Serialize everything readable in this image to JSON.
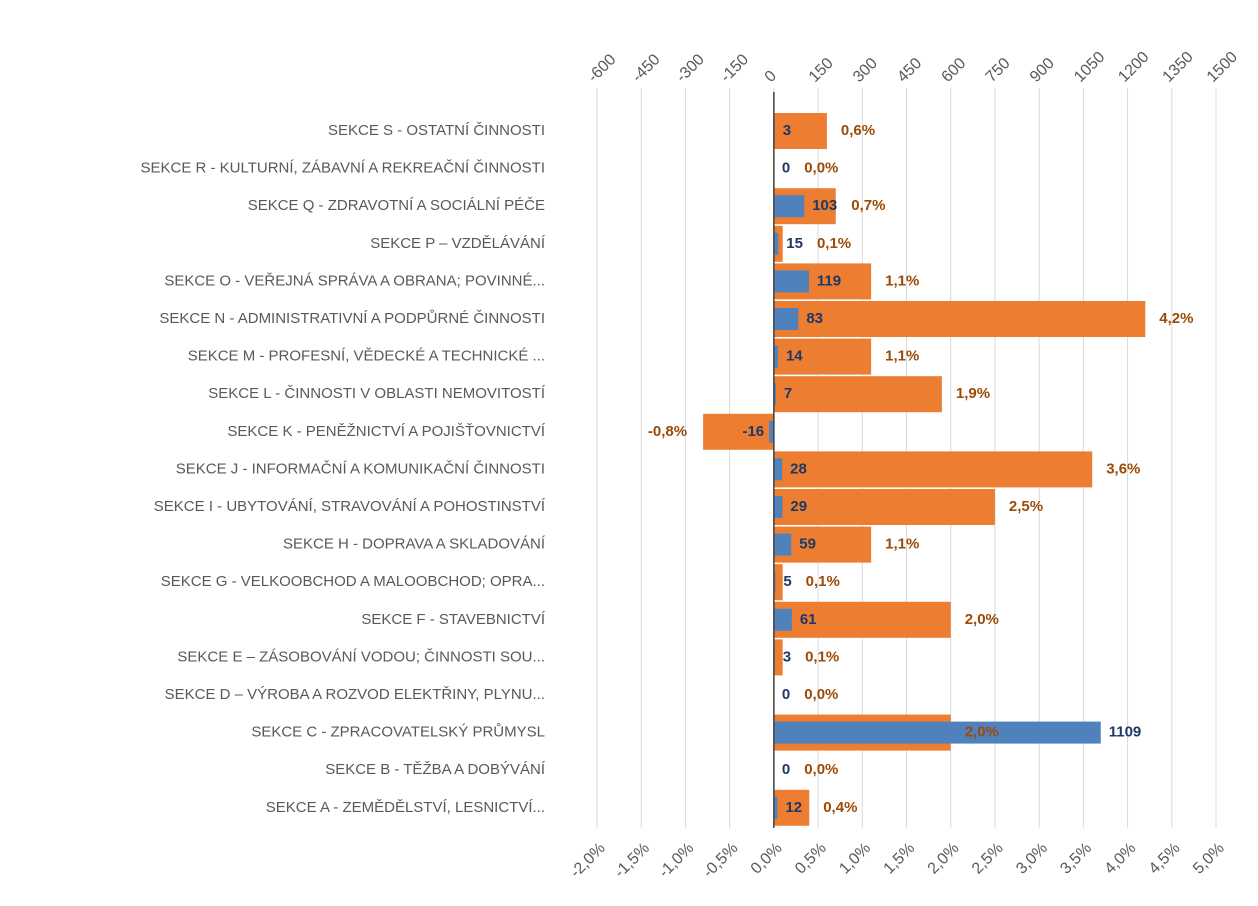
{
  "chart_data": {
    "type": "hbar",
    "categories": [
      "SEKCE S - OSTATNÍ ČINNOSTI",
      "SEKCE R - KULTURNÍ, ZÁBAVNÍ A REKREAČNÍ ČINNOSTI",
      "SEKCE Q - ZDRAVOTNÍ A SOCIÁLNÍ PÉČE",
      "SEKCE P – VZDĚLÁVÁNÍ",
      "SEKCE O - VEŘEJNÁ SPRÁVA A OBRANA; POVINNÉ...",
      "SEKCE N - ADMINISTRATIVNÍ A PODPŮRNÉ ČINNOSTI",
      "SEKCE M - PROFESNÍ, VĚDECKÉ A TECHNICKÉ ...",
      "SEKCE L - ČINNOSTI V OBLASTI NEMOVITOSTÍ",
      "SEKCE K - PENĚŽNICTVÍ A POJIŠŤOVNICTVÍ",
      "SEKCE J - INFORMAČNÍ A KOMUNIKAČNÍ ČINNOSTI",
      "SEKCE I - UBYTOVÁNÍ, STRAVOVÁNÍ A POHOSTINSTVÍ",
      "SEKCE H - DOPRAVA A SKLADOVÁNÍ",
      "SEKCE G - VELKOOBCHOD A MALOOBCHOD; OPRA...",
      "SEKCE F - STAVEBNICTVÍ",
      "SEKCE E – ZÁSOBOVÁNÍ VODOU; ČINNOSTI SOU...",
      "SEKCE D – VÝROBA A ROZVOD ELEKTŘINY, PLYNU...",
      "SEKCE C - ZPRACOVATELSKÝ PRŮMYSL",
      "SEKCE B - TĚŽBA A DOBÝVÁNÍ",
      "SEKCE A - ZEMĚDĚLSTVÍ, LESNICTVÍ..."
    ],
    "series": [
      {
        "color": "#ed7d31",
        "axis": "x",
        "values": [
          0.6,
          0.0,
          0.7,
          0.1,
          1.1,
          4.2,
          1.1,
          1.9,
          -0.8,
          3.6,
          2.5,
          1.1,
          0.1,
          2.0,
          0.1,
          0.0,
          2.0,
          0.0,
          0.4
        ],
        "value_labels": [
          "0,6%",
          "0,0%",
          "0,7%",
          "0,1%",
          "1,1%",
          "4,2%",
          "1,1%",
          "1,9%",
          "-0,8%",
          "3,6%",
          "2,5%",
          "1,1%",
          "0,1%",
          "2,0%",
          "0,1%",
          "0,0%",
          "2,0%",
          "0,0%",
          "0,4%"
        ]
      },
      {
        "color": "#4f81bd",
        "axis": "x2",
        "values": [
          3,
          0,
          103,
          15,
          119,
          83,
          14,
          7,
          -16,
          28,
          29,
          59,
          5,
          61,
          3,
          0,
          1109,
          0,
          12
        ]
      }
    ],
    "xlim": [
      -2,
      5
    ],
    "xticks": [
      {
        "value": -2,
        "label": "-2,0%"
      },
      {
        "value": -1.5,
        "label": "-1,5%"
      },
      {
        "value": -1,
        "label": "-1,0%"
      },
      {
        "value": -0.5,
        "label": "-0,5%"
      },
      {
        "value": 0,
        "label": "0,0%"
      },
      {
        "value": 0.5,
        "label": "0,5%"
      },
      {
        "value": 1,
        "label": "1,0%"
      },
      {
        "value": 1.5,
        "label": "1,5%"
      },
      {
        "value": 2,
        "label": "2,0%"
      },
      {
        "value": 2.5,
        "label": "2,5%"
      },
      {
        "value": 3,
        "label": "3,0%"
      },
      {
        "value": 3.5,
        "label": "3,5%"
      },
      {
        "value": 4,
        "label": "4,0%"
      },
      {
        "value": 4.5,
        "label": "4,5%"
      },
      {
        "value": 5,
        "label": "5,0%"
      }
    ],
    "x2lim": [
      -600,
      1500
    ],
    "x2ticks": [
      -600,
      -450,
      -300,
      -150,
      0,
      150,
      300,
      450,
      600,
      750,
      900,
      1050,
      1200,
      1350,
      1500
    ],
    "grid": true
  }
}
